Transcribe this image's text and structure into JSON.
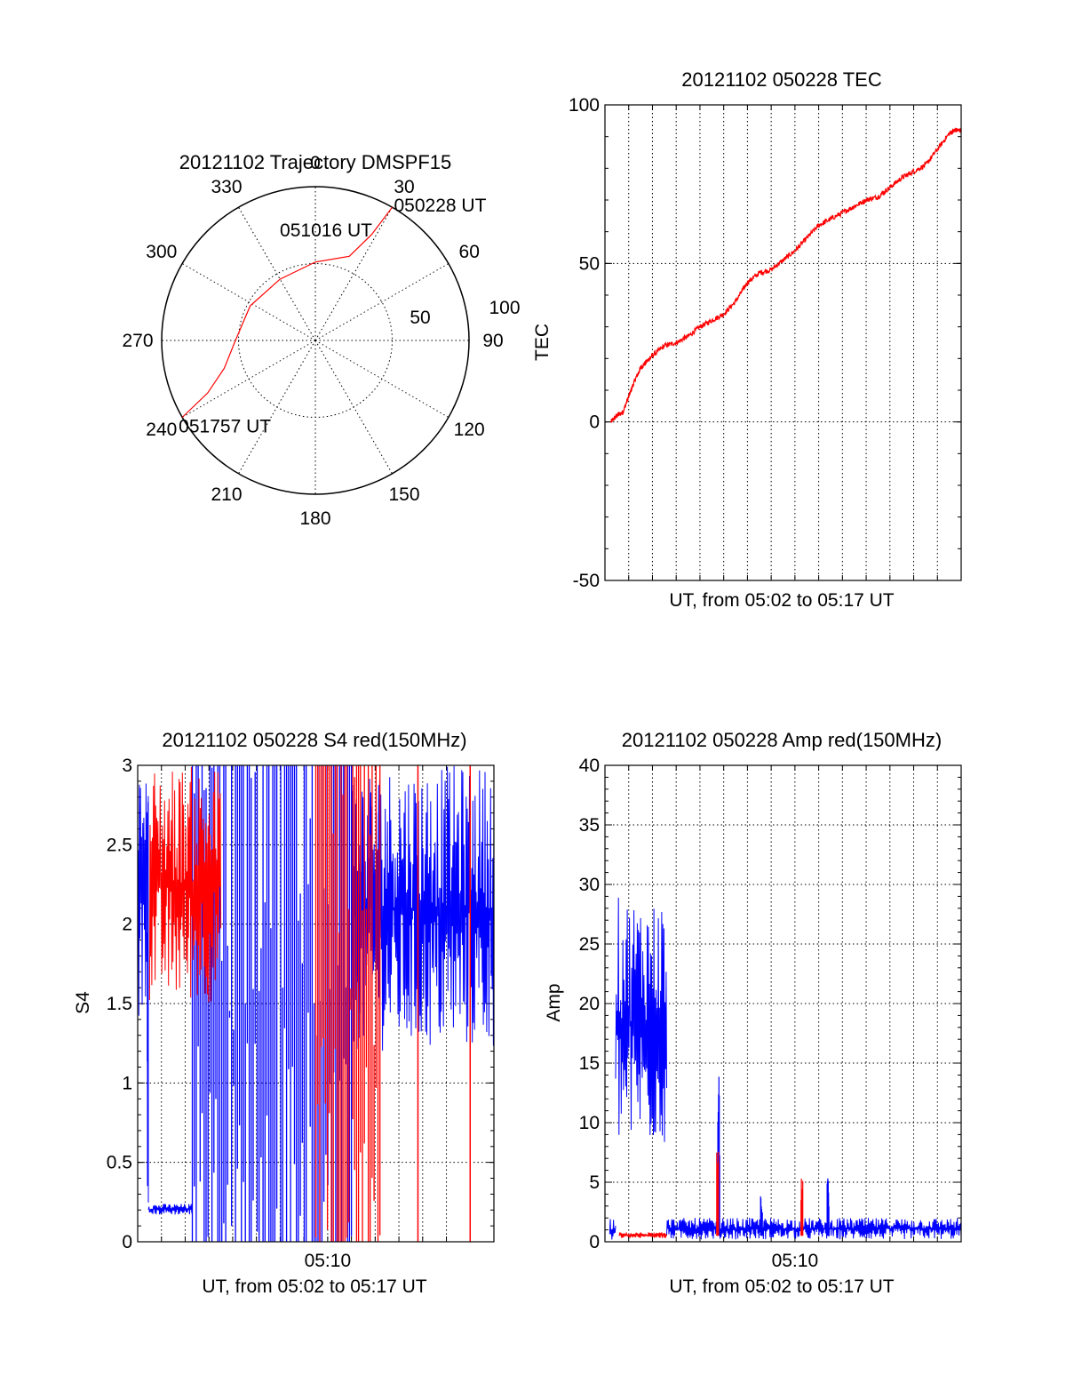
{
  "chart_data": [
    {
      "type": "polar",
      "title": "20121102 Trajectory DMSPF15",
      "angle_labels": [
        "0",
        "30",
        "60",
        "90",
        "120",
        "150",
        "180",
        "210",
        "240",
        "270",
        "300",
        "330"
      ],
      "radial_labels": [
        "50",
        "100"
      ],
      "rmax": 100,
      "trajectory": {
        "color": "#ff0000",
        "points": [
          [
            30,
            100
          ],
          [
            28,
            78
          ],
          [
            22,
            59
          ],
          [
            0,
            51
          ],
          [
            -30,
            46
          ],
          [
            -62,
            48
          ],
          [
            -90,
            52
          ],
          [
            -107,
            62
          ],
          [
            -116,
            78
          ],
          [
            -120,
            100
          ]
        ]
      },
      "annotations": [
        {
          "text": "050228 UT",
          "az": 30,
          "r": 100
        },
        {
          "text": "051016 UT",
          "az": 0,
          "r": 51
        },
        {
          "text": "051757 UT",
          "az": -120,
          "r": 100
        }
      ]
    },
    {
      "type": "line",
      "title": "20121102 050228 TEC",
      "xlabel": "UT, from 05:02 to 05:17 UT",
      "ylabel": "TEC",
      "ylim": [
        -50,
        100
      ],
      "yticks": [
        "-50",
        "0",
        "50",
        "100"
      ],
      "xlim": [
        0,
        15
      ],
      "grid": true,
      "series": [
        {
          "color": "#ff0000",
          "x": [
            0.25,
            0.5,
            0.75,
            1,
            1.25,
            1.5,
            1.75,
            2,
            2.5,
            3,
            3.5,
            4,
            4.5,
            5,
            5.5,
            6,
            6.5,
            7,
            7.5,
            8,
            8.5,
            9,
            9.5,
            10,
            10.5,
            11,
            11.5,
            12,
            12.5,
            13,
            13.5,
            14,
            14.5,
            14.75,
            15
          ],
          "y": [
            0,
            2,
            3,
            8,
            13,
            17,
            19,
            21,
            24,
            25,
            27,
            30,
            32,
            34,
            38,
            44,
            47,
            48,
            51,
            54,
            58,
            62,
            64,
            66,
            68,
            70,
            71,
            74,
            77,
            79,
            81,
            86,
            91,
            92,
            92
          ]
        }
      ]
    },
    {
      "type": "line",
      "title": "20121102 050228 S4 red(150MHz)",
      "xlabel": "UT, from 05:02 to 05:17 UT",
      "ylabel": "S4",
      "ylim": [
        0,
        3
      ],
      "yticks": [
        "0",
        "0.5",
        "1",
        "1.5",
        "2",
        "2.5",
        "3"
      ],
      "xlim": [
        0,
        15
      ],
      "xtick_labels": [
        {
          "x": 8,
          "label": "05:10"
        }
      ],
      "grid": true,
      "series": [
        {
          "color": "#0000ff",
          "segments": [
            {
              "kind": "noise",
              "x0": 0,
              "x1": 0.4,
              "lo": 1.4,
              "hi": 3
            },
            {
              "kind": "noise",
              "x0": 0.4,
              "x1": 0.45,
              "lo": 0.2,
              "hi": 3
            },
            {
              "kind": "noise",
              "x0": 0.45,
              "x1": 2.3,
              "lo": 0.17,
              "hi": 0.24
            },
            {
              "kind": "spikes",
              "x0": 2.3,
              "x1": 9.0,
              "lo": 0,
              "hi": 3
            },
            {
              "kind": "noise",
              "x0": 9.0,
              "x1": 15,
              "lo": 1.2,
              "hi": 3
            }
          ]
        },
        {
          "color": "#ff0000",
          "segments": [
            {
              "kind": "noise",
              "x0": 0.5,
              "x1": 3.5,
              "lo": 1.5,
              "hi": 3
            },
            {
              "kind": "spikes",
              "x0": 7.5,
              "x1": 10.2,
              "lo": 0,
              "hi": 3
            },
            {
              "kind": "line",
              "x": 11.8,
              "lo": 0,
              "hi": 3
            },
            {
              "kind": "line",
              "x": 14.0,
              "lo": 0,
              "hi": 3
            }
          ]
        }
      ]
    },
    {
      "type": "line",
      "title": "20121102 050228 Amp red(150MHz)",
      "xlabel": "UT, from 05:02 to 05:17 UT",
      "ylabel": "Amp",
      "ylim": [
        0,
        40
      ],
      "yticks": [
        "0",
        "5",
        "10",
        "15",
        "20",
        "25",
        "30",
        "35",
        "40"
      ],
      "xlim": [
        0,
        15
      ],
      "xtick_labels": [
        {
          "x": 8,
          "label": "05:10"
        }
      ],
      "grid": true,
      "series": [
        {
          "color": "#0000ff",
          "segments": [
            {
              "kind": "noise",
              "x0": 0.2,
              "x1": 0.45,
              "lo": 0,
              "hi": 2
            },
            {
              "kind": "noise",
              "x0": 0.45,
              "x1": 2.6,
              "lo": 8,
              "hi": 29
            },
            {
              "kind": "noise",
              "x0": 2.6,
              "x1": 15,
              "lo": 0.2,
              "hi": 2
            },
            {
              "kind": "burst",
              "x": 4.8,
              "hi": 14
            },
            {
              "kind": "burst",
              "x": 6.6,
              "hi": 4
            },
            {
              "kind": "burst",
              "x": 9.4,
              "hi": 5.5
            }
          ]
        },
        {
          "color": "#ff0000",
          "segments": [
            {
              "kind": "noise",
              "x0": 0.6,
              "x1": 2.6,
              "lo": 0.3,
              "hi": 0.8
            },
            {
              "kind": "burst",
              "x": 4.75,
              "hi": 9.5
            },
            {
              "kind": "burst",
              "x": 8.3,
              "hi": 6
            }
          ]
        }
      ]
    }
  ]
}
